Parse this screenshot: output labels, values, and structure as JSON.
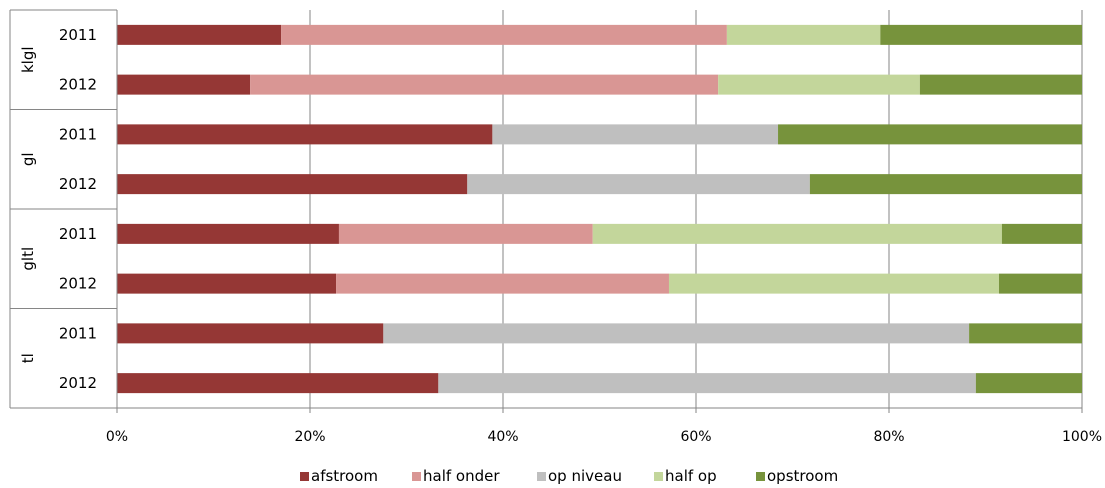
{
  "chart_data": {
    "type": "bar",
    "orientation": "horizontal",
    "stacked": "percent",
    "groups": [
      {
        "label": "klgl",
        "years": [
          "2011",
          "2012"
        ]
      },
      {
        "label": "gl",
        "years": [
          "2011",
          "2012"
        ]
      },
      {
        "label": "gltl",
        "years": [
          "2011",
          "2012"
        ]
      },
      {
        "label": "tl",
        "years": [
          "2011",
          "2012"
        ]
      }
    ],
    "series": [
      {
        "name": "afstroom",
        "color": "#953735",
        "values": [
          17.0,
          13.8,
          38.9,
          36.3,
          23.0,
          22.7,
          27.6,
          33.3
        ]
      },
      {
        "name": "half onder",
        "color": "#d99694",
        "values": [
          46.2,
          48.5,
          0,
          0,
          26.3,
          34.5,
          0,
          0
        ]
      },
      {
        "name": "op niveau",
        "color": "#bfbfbf",
        "values": [
          0,
          0,
          29.6,
          35.5,
          0,
          0,
          60.7,
          55.7
        ]
      },
      {
        "name": "half op",
        "color": "#c3d69b",
        "values": [
          15.9,
          20.9,
          0,
          0,
          42.4,
          34.2,
          0,
          0
        ]
      },
      {
        "name": "opstroom",
        "color": "#77933c",
        "values": [
          20.9,
          16.8,
          31.5,
          28.2,
          8.3,
          8.6,
          11.7,
          11.0
        ]
      }
    ],
    "x_ticks": [
      "0%",
      "20%",
      "40%",
      "60%",
      "80%",
      "100%"
    ],
    "xlim": [
      0,
      100
    ],
    "grid": true,
    "legend_position": "bottom"
  }
}
